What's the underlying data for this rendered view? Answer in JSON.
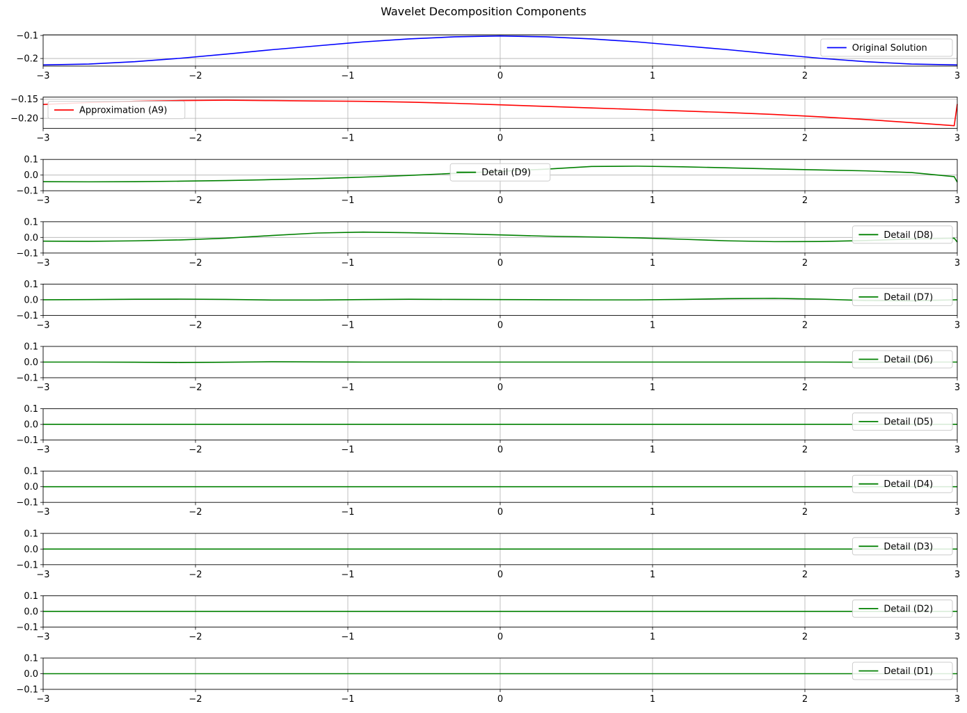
{
  "figure": {
    "title": "Wavelet Decomposition Components"
  },
  "chart_data": [
    {
      "type": "line",
      "xlim": [
        -3,
        3
      ],
      "ylim": [
        -0.233,
        -0.097
      ],
      "xticks": [
        -3,
        -2,
        -1,
        0,
        1,
        2,
        3
      ],
      "yticks": [
        -0.1,
        -0.2
      ],
      "ytick_labels": [
        "−0.1",
        "−0.2"
      ],
      "grid": true,
      "legend_position": "right",
      "series": [
        {
          "name": "Original Solution",
          "color": "#0000ff",
          "x": [
            -3,
            -2.7,
            -2.4,
            -2.1,
            -1.8,
            -1.5,
            -1.2,
            -0.9,
            -0.6,
            -0.3,
            0,
            0.3,
            0.6,
            0.9,
            1.2,
            1.5,
            1.8,
            2.1,
            2.4,
            2.7,
            3
          ],
          "y": [
            -0.228,
            -0.224,
            -0.214,
            -0.199,
            -0.181,
            -0.162,
            -0.145,
            -0.128,
            -0.115,
            -0.106,
            -0.102,
            -0.106,
            -0.115,
            -0.128,
            -0.145,
            -0.162,
            -0.181,
            -0.199,
            -0.214,
            -0.224,
            -0.228
          ]
        }
      ]
    },
    {
      "type": "line",
      "xlim": [
        -3,
        3
      ],
      "ylim": [
        -0.226,
        -0.145
      ],
      "xticks": [
        -3,
        -2,
        -1,
        0,
        1,
        2,
        3
      ],
      "yticks": [
        -0.15,
        -0.2
      ],
      "ytick_labels": [
        "−0.15",
        "−0.20"
      ],
      "grid": true,
      "legend_position": "left",
      "series": [
        {
          "name": "Approximation (A9)",
          "color": "#ff0000",
          "x": [
            -3,
            -2.7,
            -2.4,
            -2.1,
            -1.8,
            -1.5,
            -1.2,
            -0.9,
            -0.6,
            -0.3,
            0,
            0.3,
            0.6,
            0.9,
            1.2,
            1.5,
            1.8,
            2.1,
            2.4,
            2.7,
            2.98,
            3
          ],
          "y": [
            -0.164,
            -0.159,
            -0.156,
            -0.154,
            -0.153,
            -0.154,
            -0.155,
            -0.156,
            -0.158,
            -0.161,
            -0.165,
            -0.169,
            -0.173,
            -0.177,
            -0.181,
            -0.185,
            -0.19,
            -0.196,
            -0.203,
            -0.211,
            -0.219,
            -0.163
          ]
        }
      ]
    },
    {
      "type": "line",
      "xlim": [
        -3,
        3
      ],
      "ylim": [
        -0.1,
        0.1
      ],
      "xticks": [
        -3,
        -2,
        -1,
        0,
        1,
        2,
        3
      ],
      "yticks": [
        0.1,
        0.0,
        -0.1
      ],
      "ytick_labels": [
        "0.1",
        "0.0",
        "−0.1"
      ],
      "grid": true,
      "legend_position": "center",
      "series": [
        {
          "name": "Detail (D9)",
          "color": "#008000",
          "x": [
            -3,
            -2.7,
            -2.4,
            -2.1,
            -1.8,
            -1.5,
            -1.2,
            -0.9,
            -0.6,
            -0.3,
            0,
            0.3,
            0.6,
            0.9,
            1.2,
            1.5,
            1.8,
            2.1,
            2.4,
            2.7,
            2.98,
            3
          ],
          "y": [
            -0.042,
            -0.043,
            -0.042,
            -0.039,
            -0.035,
            -0.029,
            -0.022,
            -0.013,
            -0.002,
            0.011,
            0.024,
            0.038,
            0.055,
            0.057,
            0.053,
            0.046,
            0.039,
            0.033,
            0.027,
            0.016,
            -0.01,
            -0.045
          ]
        }
      ]
    },
    {
      "type": "line",
      "xlim": [
        -3,
        3
      ],
      "ylim": [
        -0.1,
        0.1
      ],
      "xticks": [
        -3,
        -2,
        -1,
        0,
        1,
        2,
        3
      ],
      "yticks": [
        0.1,
        0.0,
        -0.1
      ],
      "ytick_labels": [
        "0.1",
        "0.0",
        "−0.1"
      ],
      "grid": true,
      "legend_position": "right",
      "series": [
        {
          "name": "Detail (D8)",
          "color": "#008000",
          "x": [
            -3,
            -2.7,
            -2.4,
            -2.1,
            -1.8,
            -1.5,
            -1.2,
            -0.9,
            -0.6,
            -0.3,
            0,
            0.3,
            0.6,
            0.9,
            1.2,
            1.5,
            1.8,
            2.1,
            2.4,
            2.7,
            2.98,
            3
          ],
          "y": [
            -0.024,
            -0.025,
            -0.022,
            -0.016,
            -0.005,
            0.012,
            0.028,
            0.034,
            0.03,
            0.024,
            0.016,
            0.008,
            0.003,
            -0.003,
            -0.012,
            -0.022,
            -0.027,
            -0.026,
            -0.02,
            -0.01,
            -0.005,
            -0.03
          ]
        }
      ]
    },
    {
      "type": "line",
      "xlim": [
        -3,
        3
      ],
      "ylim": [
        -0.1,
        0.1
      ],
      "xticks": [
        -3,
        -2,
        -1,
        0,
        1,
        2,
        3
      ],
      "yticks": [
        0.1,
        0.0,
        -0.1
      ],
      "ytick_labels": [
        "0.1",
        "0.0",
        "−0.1"
      ],
      "grid": true,
      "legend_position": "right",
      "series": [
        {
          "name": "Detail (D7)",
          "color": "#008000",
          "x": [
            -3,
            -2.7,
            -2.4,
            -2.1,
            -1.8,
            -1.5,
            -1.2,
            -0.9,
            -0.6,
            -0.3,
            0,
            0.3,
            0.6,
            0.9,
            1.2,
            1.5,
            1.8,
            2.1,
            2.4,
            2.7,
            3
          ],
          "y": [
            0,
            0.001,
            0.003,
            0.004,
            0.002,
            -0.002,
            -0.002,
            0.001,
            0.003,
            0.002,
            0.001,
            0,
            -0.001,
            -0.001,
            0.002,
            0.007,
            0.009,
            0.004,
            -0.005,
            -0.007,
            0
          ]
        }
      ]
    },
    {
      "type": "line",
      "xlim": [
        -3,
        3
      ],
      "ylim": [
        -0.1,
        0.1
      ],
      "xticks": [
        -3,
        -2,
        -1,
        0,
        1,
        2,
        3
      ],
      "yticks": [
        0.1,
        0.0,
        -0.1
      ],
      "ytick_labels": [
        "0.1",
        "0.0",
        "−0.1"
      ],
      "grid": true,
      "legend_position": "right",
      "series": [
        {
          "name": "Detail (D6)",
          "color": "#008000",
          "x": [
            -3,
            -2.7,
            -2.4,
            -2.1,
            -1.8,
            -1.5,
            -1.2,
            -0.9,
            -0.6,
            -0.3,
            0,
            0.3,
            0.6,
            0.9,
            1.2,
            1.5,
            1.8,
            2.1,
            2.4,
            2.7,
            3
          ],
          "y": [
            0,
            0,
            -0.001,
            -0.003,
            -0.001,
            0.002,
            0.001,
            0,
            0,
            0,
            0,
            0,
            0,
            0,
            0,
            0,
            0,
            0,
            -0.001,
            0,
            0
          ]
        }
      ]
    },
    {
      "type": "line",
      "xlim": [
        -3,
        3
      ],
      "ylim": [
        -0.1,
        0.1
      ],
      "xticks": [
        -3,
        -2,
        -1,
        0,
        1,
        2,
        3
      ],
      "yticks": [
        0.1,
        0.0,
        -0.1
      ],
      "ytick_labels": [
        "0.1",
        "0.0",
        "−0.1"
      ],
      "grid": true,
      "legend_position": "right",
      "series": [
        {
          "name": "Detail (D5)",
          "color": "#008000",
          "x": [
            -3,
            3
          ],
          "y": [
            0,
            0
          ]
        }
      ]
    },
    {
      "type": "line",
      "xlim": [
        -3,
        3
      ],
      "ylim": [
        -0.1,
        0.1
      ],
      "xticks": [
        -3,
        -2,
        -1,
        0,
        1,
        2,
        3
      ],
      "yticks": [
        0.1,
        0.0,
        -0.1
      ],
      "ytick_labels": [
        "0.1",
        "0.0",
        "−0.1"
      ],
      "grid": true,
      "legend_position": "right",
      "series": [
        {
          "name": "Detail (D4)",
          "color": "#008000",
          "x": [
            -3,
            3
          ],
          "y": [
            0,
            0
          ]
        }
      ]
    },
    {
      "type": "line",
      "xlim": [
        -3,
        3
      ],
      "ylim": [
        -0.1,
        0.1
      ],
      "xticks": [
        -3,
        -2,
        -1,
        0,
        1,
        2,
        3
      ],
      "yticks": [
        0.1,
        0.0,
        -0.1
      ],
      "ytick_labels": [
        "0.1",
        "0.0",
        "−0.1"
      ],
      "grid": true,
      "legend_position": "right",
      "series": [
        {
          "name": "Detail (D3)",
          "color": "#008000",
          "x": [
            -3,
            3
          ],
          "y": [
            0,
            0
          ]
        }
      ]
    },
    {
      "type": "line",
      "xlim": [
        -3,
        3
      ],
      "ylim": [
        -0.1,
        0.1
      ],
      "xticks": [
        -3,
        -2,
        -1,
        0,
        1,
        2,
        3
      ],
      "yticks": [
        0.1,
        0.0,
        -0.1
      ],
      "ytick_labels": [
        "0.1",
        "0.0",
        "−0.1"
      ],
      "grid": true,
      "legend_position": "right",
      "series": [
        {
          "name": "Detail (D2)",
          "color": "#008000",
          "x": [
            -3,
            3
          ],
          "y": [
            0,
            0
          ]
        }
      ]
    },
    {
      "type": "line",
      "xlim": [
        -3,
        3
      ],
      "ylim": [
        -0.1,
        0.1
      ],
      "xticks": [
        -3,
        -2,
        -1,
        0,
        1,
        2,
        3
      ],
      "yticks": [
        0.1,
        0.0,
        -0.1
      ],
      "ytick_labels": [
        "0.1",
        "0.0",
        "−0.1"
      ],
      "grid": true,
      "legend_position": "right",
      "series": [
        {
          "name": "Detail (D1)",
          "color": "#008000",
          "x": [
            -3,
            3
          ],
          "y": [
            0,
            0
          ]
        }
      ]
    }
  ]
}
